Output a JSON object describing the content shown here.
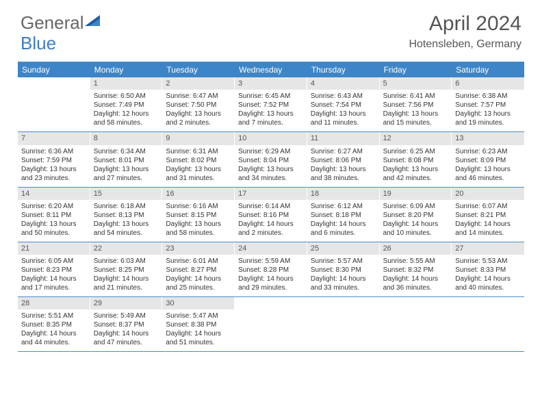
{
  "logo": {
    "text1": "General",
    "text2": "Blue"
  },
  "header": {
    "month_title": "April 2024",
    "location": "Hotensleben, Germany"
  },
  "styling": {
    "header_bg": "#3d85c6",
    "header_fg": "#ffffff",
    "daynum_bg": "#e6e6e6",
    "border_color": "#4a8cc9",
    "page_bg": "#ffffff",
    "text_color": "#333333",
    "title_color": "#555555",
    "font_family": "Arial",
    "title_fontsize": 30,
    "location_fontsize": 16,
    "header_fontsize": 12,
    "cell_fontsize": 10
  },
  "day_names": [
    "Sunday",
    "Monday",
    "Tuesday",
    "Wednesday",
    "Thursday",
    "Friday",
    "Saturday"
  ],
  "weeks": [
    [
      {
        "num": "",
        "sunrise": "",
        "sunset": "",
        "daylight1": "",
        "daylight2": ""
      },
      {
        "num": "1",
        "sunrise": "Sunrise: 6:50 AM",
        "sunset": "Sunset: 7:49 PM",
        "daylight1": "Daylight: 12 hours",
        "daylight2": "and 58 minutes."
      },
      {
        "num": "2",
        "sunrise": "Sunrise: 6:47 AM",
        "sunset": "Sunset: 7:50 PM",
        "daylight1": "Daylight: 13 hours",
        "daylight2": "and 2 minutes."
      },
      {
        "num": "3",
        "sunrise": "Sunrise: 6:45 AM",
        "sunset": "Sunset: 7:52 PM",
        "daylight1": "Daylight: 13 hours",
        "daylight2": "and 7 minutes."
      },
      {
        "num": "4",
        "sunrise": "Sunrise: 6:43 AM",
        "sunset": "Sunset: 7:54 PM",
        "daylight1": "Daylight: 13 hours",
        "daylight2": "and 11 minutes."
      },
      {
        "num": "5",
        "sunrise": "Sunrise: 6:41 AM",
        "sunset": "Sunset: 7:56 PM",
        "daylight1": "Daylight: 13 hours",
        "daylight2": "and 15 minutes."
      },
      {
        "num": "6",
        "sunrise": "Sunrise: 6:38 AM",
        "sunset": "Sunset: 7:57 PM",
        "daylight1": "Daylight: 13 hours",
        "daylight2": "and 19 minutes."
      }
    ],
    [
      {
        "num": "7",
        "sunrise": "Sunrise: 6:36 AM",
        "sunset": "Sunset: 7:59 PM",
        "daylight1": "Daylight: 13 hours",
        "daylight2": "and 23 minutes."
      },
      {
        "num": "8",
        "sunrise": "Sunrise: 6:34 AM",
        "sunset": "Sunset: 8:01 PM",
        "daylight1": "Daylight: 13 hours",
        "daylight2": "and 27 minutes."
      },
      {
        "num": "9",
        "sunrise": "Sunrise: 6:31 AM",
        "sunset": "Sunset: 8:02 PM",
        "daylight1": "Daylight: 13 hours",
        "daylight2": "and 31 minutes."
      },
      {
        "num": "10",
        "sunrise": "Sunrise: 6:29 AM",
        "sunset": "Sunset: 8:04 PM",
        "daylight1": "Daylight: 13 hours",
        "daylight2": "and 34 minutes."
      },
      {
        "num": "11",
        "sunrise": "Sunrise: 6:27 AM",
        "sunset": "Sunset: 8:06 PM",
        "daylight1": "Daylight: 13 hours",
        "daylight2": "and 38 minutes."
      },
      {
        "num": "12",
        "sunrise": "Sunrise: 6:25 AM",
        "sunset": "Sunset: 8:08 PM",
        "daylight1": "Daylight: 13 hours",
        "daylight2": "and 42 minutes."
      },
      {
        "num": "13",
        "sunrise": "Sunrise: 6:23 AM",
        "sunset": "Sunset: 8:09 PM",
        "daylight1": "Daylight: 13 hours",
        "daylight2": "and 46 minutes."
      }
    ],
    [
      {
        "num": "14",
        "sunrise": "Sunrise: 6:20 AM",
        "sunset": "Sunset: 8:11 PM",
        "daylight1": "Daylight: 13 hours",
        "daylight2": "and 50 minutes."
      },
      {
        "num": "15",
        "sunrise": "Sunrise: 6:18 AM",
        "sunset": "Sunset: 8:13 PM",
        "daylight1": "Daylight: 13 hours",
        "daylight2": "and 54 minutes."
      },
      {
        "num": "16",
        "sunrise": "Sunrise: 6:16 AM",
        "sunset": "Sunset: 8:15 PM",
        "daylight1": "Daylight: 13 hours",
        "daylight2": "and 58 minutes."
      },
      {
        "num": "17",
        "sunrise": "Sunrise: 6:14 AM",
        "sunset": "Sunset: 8:16 PM",
        "daylight1": "Daylight: 14 hours",
        "daylight2": "and 2 minutes."
      },
      {
        "num": "18",
        "sunrise": "Sunrise: 6:12 AM",
        "sunset": "Sunset: 8:18 PM",
        "daylight1": "Daylight: 14 hours",
        "daylight2": "and 6 minutes."
      },
      {
        "num": "19",
        "sunrise": "Sunrise: 6:09 AM",
        "sunset": "Sunset: 8:20 PM",
        "daylight1": "Daylight: 14 hours",
        "daylight2": "and 10 minutes."
      },
      {
        "num": "20",
        "sunrise": "Sunrise: 6:07 AM",
        "sunset": "Sunset: 8:21 PM",
        "daylight1": "Daylight: 14 hours",
        "daylight2": "and 14 minutes."
      }
    ],
    [
      {
        "num": "21",
        "sunrise": "Sunrise: 6:05 AM",
        "sunset": "Sunset: 8:23 PM",
        "daylight1": "Daylight: 14 hours",
        "daylight2": "and 17 minutes."
      },
      {
        "num": "22",
        "sunrise": "Sunrise: 6:03 AM",
        "sunset": "Sunset: 8:25 PM",
        "daylight1": "Daylight: 14 hours",
        "daylight2": "and 21 minutes."
      },
      {
        "num": "23",
        "sunrise": "Sunrise: 6:01 AM",
        "sunset": "Sunset: 8:27 PM",
        "daylight1": "Daylight: 14 hours",
        "daylight2": "and 25 minutes."
      },
      {
        "num": "24",
        "sunrise": "Sunrise: 5:59 AM",
        "sunset": "Sunset: 8:28 PM",
        "daylight1": "Daylight: 14 hours",
        "daylight2": "and 29 minutes."
      },
      {
        "num": "25",
        "sunrise": "Sunrise: 5:57 AM",
        "sunset": "Sunset: 8:30 PM",
        "daylight1": "Daylight: 14 hours",
        "daylight2": "and 33 minutes."
      },
      {
        "num": "26",
        "sunrise": "Sunrise: 5:55 AM",
        "sunset": "Sunset: 8:32 PM",
        "daylight1": "Daylight: 14 hours",
        "daylight2": "and 36 minutes."
      },
      {
        "num": "27",
        "sunrise": "Sunrise: 5:53 AM",
        "sunset": "Sunset: 8:33 PM",
        "daylight1": "Daylight: 14 hours",
        "daylight2": "and 40 minutes."
      }
    ],
    [
      {
        "num": "28",
        "sunrise": "Sunrise: 5:51 AM",
        "sunset": "Sunset: 8:35 PM",
        "daylight1": "Daylight: 14 hours",
        "daylight2": "and 44 minutes."
      },
      {
        "num": "29",
        "sunrise": "Sunrise: 5:49 AM",
        "sunset": "Sunset: 8:37 PM",
        "daylight1": "Daylight: 14 hours",
        "daylight2": "and 47 minutes."
      },
      {
        "num": "30",
        "sunrise": "Sunrise: 5:47 AM",
        "sunset": "Sunset: 8:38 PM",
        "daylight1": "Daylight: 14 hours",
        "daylight2": "and 51 minutes."
      },
      {
        "num": "",
        "sunrise": "",
        "sunset": "",
        "daylight1": "",
        "daylight2": ""
      },
      {
        "num": "",
        "sunrise": "",
        "sunset": "",
        "daylight1": "",
        "daylight2": ""
      },
      {
        "num": "",
        "sunrise": "",
        "sunset": "",
        "daylight1": "",
        "daylight2": ""
      },
      {
        "num": "",
        "sunrise": "",
        "sunset": "",
        "daylight1": "",
        "daylight2": ""
      }
    ]
  ]
}
